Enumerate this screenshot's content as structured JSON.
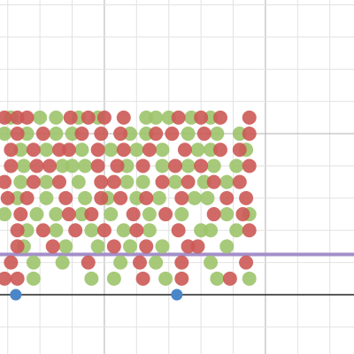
{
  "chart_data": {
    "type": "scatter",
    "xlim": [
      1.76,
      12.75
    ],
    "ylim": [
      -1.84,
      9.15
    ],
    "xticks": [
      2,
      3,
      4,
      5,
      6,
      7,
      8,
      9,
      10,
      11,
      12
    ],
    "yticks": [
      -1,
      0,
      1,
      2,
      3,
      4,
      5,
      6,
      7,
      8,
      9
    ],
    "grid": true,
    "horizontal_line": {
      "y": 1.25,
      "color": "#a48fc9"
    },
    "series": [
      {
        "color": "#9cc46a",
        "x": [
          2.1,
          3.0,
          3.5,
          4.2,
          4.8,
          6.3,
          6.6,
          7.0,
          7.7,
          8.3,
          1.9,
          2.6,
          3.5,
          4.0,
          5.8,
          6.3,
          7.6,
          8.5,
          9.2,
          2.4,
          3.2,
          4.3,
          5.2,
          6.0,
          6.8,
          7.9,
          8.3,
          9.4,
          2.5,
          3.7,
          4.0,
          4.4,
          5.7,
          6.8,
          7.6,
          8.4,
          9.1,
          2.4,
          3.2,
          4.2,
          5.7,
          6.2,
          7.2,
          8.1,
          8.8,
          2.3,
          3.2,
          4.4,
          5.1,
          6.0,
          6.7,
          7.8,
          8.2,
          1.9,
          2.9,
          3.5,
          4.3,
          5.2,
          6.4,
          7.4,
          8.8,
          9.5,
          2.6,
          3.5,
          4.6,
          5.6,
          6.4,
          8.0,
          8.3,
          9.1,
          2.5,
          3.8,
          4.8,
          5.8,
          6.8,
          8.8,
          2.8,
          3.7,
          5.5,
          6.6,
          8.3,
          2.8,
          4.6,
          5.3,
          6.9,
          8.5,
          9.5
        ],
        "y": [
          5.5,
          5.5,
          5.5,
          5.5,
          5.5,
          5.5,
          5.5,
          5.5,
          5.5,
          5.5,
          5,
          5,
          5,
          5,
          5,
          5,
          5,
          5,
          5,
          4.5,
          4.5,
          4.5,
          4.5,
          4.5,
          4.5,
          4.5,
          4.5,
          4.5,
          4,
          4,
          4,
          4,
          4,
          4,
          4,
          4,
          4,
          3.5,
          3.5,
          3.5,
          3.5,
          3.5,
          3.5,
          3.5,
          3.5,
          3,
          3,
          3,
          3,
          3,
          3,
          3,
          3,
          2.5,
          2.5,
          2.5,
          2.5,
          2.5,
          2.5,
          2.5,
          2.5,
          2.5,
          2,
          2,
          2,
          2,
          2,
          2,
          2,
          2,
          1.5,
          1.5,
          1.5,
          1.5,
          1.5,
          1.5,
          1,
          1,
          1,
          1,
          1,
          0.5,
          0.5,
          0.5,
          0.5,
          0.5,
          0.5
        ]
      },
      {
        "color": "#cc5955",
        "x": [
          1.9,
          2.3,
          2.6,
          3.95,
          4.5,
          5.0,
          5.6,
          7.3,
          8.0,
          8.6,
          9.5,
          2.3,
          3.1,
          4.3,
          4.9,
          5.5,
          6.6,
          7.1,
          8.1,
          9.5,
          2.1,
          2.8,
          3.6,
          3.9,
          4.8,
          5.6,
          6.4,
          7.5,
          8.6,
          9.2,
          2.1,
          2.9,
          3.3,
          4.8,
          5.4,
          6.2,
          7.2,
          8.0,
          9.5,
          1.9,
          2.8,
          3.6,
          4.9,
          5.3,
          6.8,
          7.6,
          8.4,
          9.2,
          2.0,
          2.6,
          3.8,
          4.9,
          5.5,
          6.3,
          7.4,
          8.8,
          9.4,
          2.4,
          3.9,
          4.6,
          5.9,
          6.9,
          8.4,
          9.3,
          2.3,
          3.1,
          4.1,
          5.0,
          6.0,
          7.3,
          9.5,
          2.3,
          3.4,
          5.3,
          6.3,
          7.6,
          7.9,
          2.1,
          4.5,
          6.1,
          7.4,
          9.4,
          1.9,
          2.3,
          6.2,
          7.4,
          8.9
        ],
        "y": [
          5.5,
          5.5,
          5.5,
          5.5,
          5.5,
          5.5,
          5.5,
          5.5,
          5.5,
          5.5,
          5.5,
          5,
          5,
          5,
          5,
          5,
          5,
          5,
          5,
          5,
          4.5,
          4.5,
          4.5,
          4.5,
          4.5,
          4.5,
          4.5,
          4.5,
          4.5,
          4.5,
          4,
          4,
          4,
          4,
          4,
          4,
          4,
          4,
          4,
          3.5,
          3.5,
          3.5,
          3.5,
          3.5,
          3.5,
          3.5,
          3.5,
          3.5,
          3,
          3,
          3,
          3,
          3,
          3,
          3,
          3,
          3,
          2.5,
          2.5,
          2.5,
          2.5,
          2.5,
          2.5,
          2.5,
          2,
          2,
          2,
          2,
          2,
          2,
          2,
          1.5,
          1.5,
          1.5,
          1.5,
          1.5,
          1.5,
          1,
          1,
          1,
          1,
          1,
          0.5,
          0.5,
          0.5,
          0.5,
          0.5
        ]
      },
      {
        "color": "#4a86c8",
        "x": [
          2.25,
          7.25
        ],
        "y": [
          0,
          0
        ]
      }
    ]
  }
}
